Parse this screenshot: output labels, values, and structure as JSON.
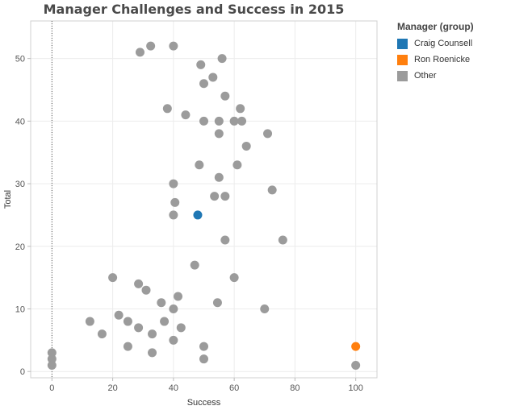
{
  "chart_data": {
    "type": "scatter",
    "title": "Manager Challenges and Success in 2015",
    "xlabel": "Success",
    "ylabel": "Total",
    "xlim": [
      -7,
      107
    ],
    "ylim": [
      -1,
      56
    ],
    "xticks": [
      0,
      20,
      40,
      60,
      80,
      100
    ],
    "yticks": [
      0,
      10,
      20,
      30,
      40,
      50
    ],
    "grid": true,
    "reference_line": {
      "axis": "x",
      "value": 0,
      "style": "dotted"
    },
    "legend": {
      "title": "Manager (group)",
      "placement": "right",
      "entries": [
        {
          "name": "Craig Counsell",
          "color": "#1f77b4"
        },
        {
          "name": "Ron Roenicke",
          "color": "#ff7f0e"
        },
        {
          "name": "Other",
          "color": "#9b9b9b"
        }
      ]
    },
    "series": [
      {
        "name": "Craig Counsell",
        "color": "#1f77b4",
        "points": [
          [
            48,
            25
          ]
        ]
      },
      {
        "name": "Ron Roenicke",
        "color": "#ff7f0e",
        "points": [
          [
            100,
            4
          ]
        ]
      },
      {
        "name": "Other",
        "color": "#9b9b9b",
        "points": [
          [
            29,
            51
          ],
          [
            32.5,
            52
          ],
          [
            40,
            52
          ],
          [
            56,
            50
          ],
          [
            49,
            49
          ],
          [
            53,
            47
          ],
          [
            50,
            46
          ],
          [
            57,
            44
          ],
          [
            38,
            42
          ],
          [
            62,
            42
          ],
          [
            44,
            41
          ],
          [
            50,
            40
          ],
          [
            55,
            40
          ],
          [
            60,
            40
          ],
          [
            62.5,
            40
          ],
          [
            55,
            38
          ],
          [
            71,
            38
          ],
          [
            64,
            36
          ],
          [
            48.5,
            33
          ],
          [
            61,
            33
          ],
          [
            55,
            31
          ],
          [
            40,
            30
          ],
          [
            72.5,
            29
          ],
          [
            53.5,
            28
          ],
          [
            57,
            28
          ],
          [
            40.5,
            27
          ],
          [
            40,
            25
          ],
          [
            57,
            21
          ],
          [
            76,
            21
          ],
          [
            47,
            17
          ],
          [
            20,
            15
          ],
          [
            60,
            15
          ],
          [
            28.5,
            14
          ],
          [
            31,
            13
          ],
          [
            41.5,
            12
          ],
          [
            36,
            11
          ],
          [
            54.5,
            11
          ],
          [
            40,
            10
          ],
          [
            70,
            10
          ],
          [
            22,
            9
          ],
          [
            12.5,
            8
          ],
          [
            25,
            8
          ],
          [
            37,
            8
          ],
          [
            28.5,
            7
          ],
          [
            42.5,
            7
          ],
          [
            16.5,
            6
          ],
          [
            33,
            6
          ],
          [
            40,
            5
          ],
          [
            25,
            4
          ],
          [
            50,
            4
          ],
          [
            33,
            3
          ],
          [
            50,
            2
          ],
          [
            0,
            3
          ],
          [
            0,
            2
          ],
          [
            0,
            1
          ],
          [
            100,
            1
          ]
        ]
      }
    ]
  }
}
